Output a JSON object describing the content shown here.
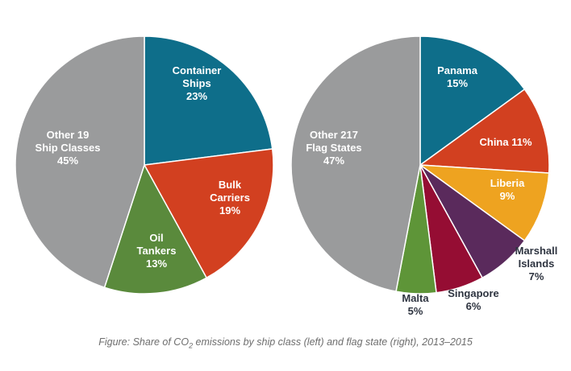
{
  "colors": {
    "teal": "#0e6e8a",
    "red": "#d24020",
    "green": "#5a8a3c",
    "gray": "#9a9b9c",
    "orange": "#eea320",
    "purple": "#5a2a5c",
    "crimson": "#950d33",
    "leaf_green": "#5e9538"
  },
  "caption": {
    "before": "Figure: Share of CO",
    "subscript": "2",
    "after": " emissions by ship class (left) and flag state (right), 2013–2015"
  },
  "chart_data": [
    {
      "type": "pie",
      "title": "",
      "slices": [
        {
          "lines": [
            "Container",
            "Ships",
            "23%"
          ],
          "value": 23,
          "color": "#0e6e8a",
          "label_color": "#ffffff"
        },
        {
          "lines": [
            "Bulk",
            "Carriers",
            "19%"
          ],
          "value": 19,
          "color": "#d24020",
          "label_color": "#ffffff"
        },
        {
          "lines": [
            "Oil",
            "Tankers",
            "13%"
          ],
          "value": 13,
          "color": "#5a8a3c",
          "label_color": "#ffffff"
        },
        {
          "lines": [
            "Other 19",
            "Ship Classes",
            "45%"
          ],
          "value": 45,
          "color": "#9a9b9c",
          "label_color": "#ffffff"
        }
      ]
    },
    {
      "type": "pie",
      "title": "",
      "slices": [
        {
          "lines": [
            "Panama",
            "15%"
          ],
          "value": 15,
          "color": "#0e6e8a",
          "label_color": "#ffffff"
        },
        {
          "lines": [
            "China 11%"
          ],
          "value": 11,
          "color": "#d24020",
          "label_color": "#ffffff"
        },
        {
          "lines": [
            "Liberia",
            "9%"
          ],
          "value": 9,
          "color": "#eea320",
          "label_color": "#ffffff"
        },
        {
          "lines": [
            "Marshall",
            "Islands",
            "7%"
          ],
          "value": 7,
          "color": "#5a2a5c",
          "label_color": "#2e3440"
        },
        {
          "lines": [
            "Singapore",
            "6%"
          ],
          "value": 6,
          "color": "#950d33",
          "label_color": "#2e3440"
        },
        {
          "lines": [
            "Malta",
            "5%"
          ],
          "value": 5,
          "color": "#5e9538",
          "label_color": "#2e3440"
        },
        {
          "lines": [
            "Other 217",
            "Flag States",
            "47%"
          ],
          "value": 47,
          "color": "#9a9b9c",
          "label_color": "#ffffff"
        }
      ]
    }
  ]
}
